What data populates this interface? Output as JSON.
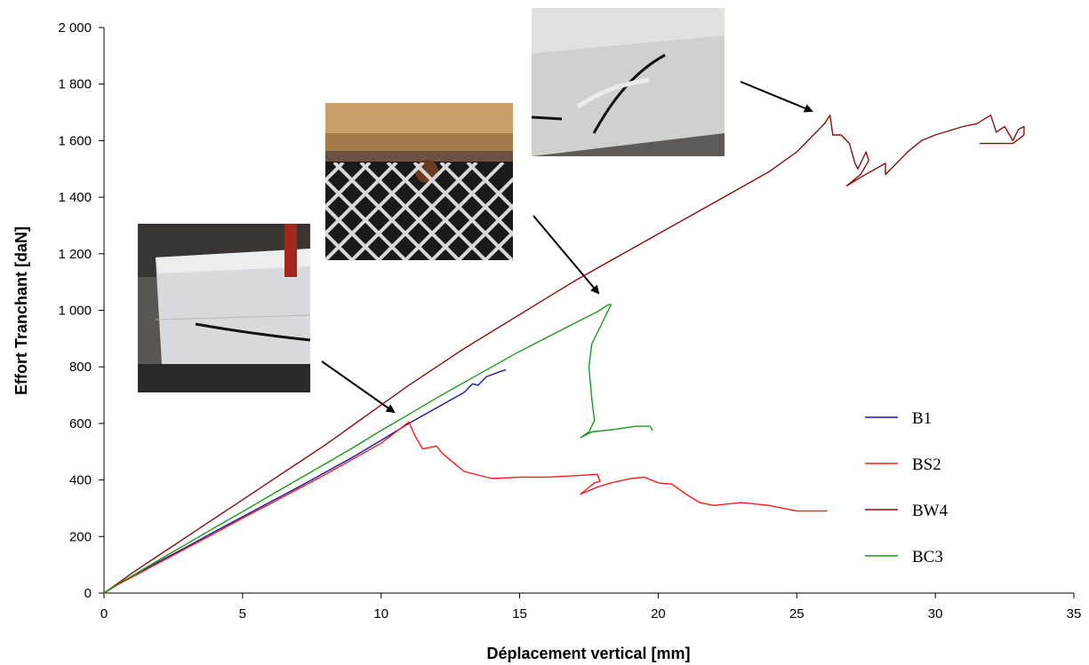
{
  "chart_data": {
    "type": "line",
    "title": "",
    "xlabel": "Déplacement vertical [mm]",
    "ylabel": "Effort Tranchant [daN]",
    "xlim": [
      0,
      35
    ],
    "ylim": [
      0,
      2000
    ],
    "xticks": [
      0,
      5,
      10,
      15,
      20,
      25,
      30,
      35
    ],
    "yticks": [
      0,
      200,
      400,
      600,
      800,
      1000,
      1200,
      1400,
      1600,
      1800,
      2000
    ],
    "xtick_labels": [
      "0",
      "5",
      "10",
      "15",
      "20",
      "25",
      "30",
      "35"
    ],
    "ytick_labels": [
      "0",
      "200",
      "400",
      "600",
      "800",
      "1 000",
      "1 200",
      "1 400",
      "1 600",
      "1 800",
      "2 000"
    ],
    "grid": false,
    "legend_position": "right",
    "series": [
      {
        "name": "B1",
        "color": "#1a1aa6",
        "points": [
          [
            0,
            0
          ],
          [
            0.5,
            30
          ],
          [
            1,
            58
          ],
          [
            2,
            112
          ],
          [
            3,
            164
          ],
          [
            4,
            218
          ],
          [
            5,
            270
          ],
          [
            6,
            322
          ],
          [
            7,
            374
          ],
          [
            8,
            428
          ],
          [
            9,
            482
          ],
          [
            10,
            540
          ],
          [
            11,
            600
          ],
          [
            12,
            655
          ],
          [
            13,
            710
          ],
          [
            13.3,
            740
          ],
          [
            13.5,
            735
          ],
          [
            13.8,
            765
          ],
          [
            14.2,
            780
          ],
          [
            14.5,
            790
          ]
        ]
      },
      {
        "name": "BS2",
        "color": "#ff1a1a",
        "points": [
          [
            0,
            0
          ],
          [
            0.5,
            30
          ],
          [
            1,
            56
          ],
          [
            2,
            108
          ],
          [
            3,
            160
          ],
          [
            4,
            212
          ],
          [
            5,
            265
          ],
          [
            6,
            316
          ],
          [
            7,
            368
          ],
          [
            8,
            420
          ],
          [
            9,
            475
          ],
          [
            10,
            530
          ],
          [
            10.6,
            575
          ],
          [
            11,
            605
          ],
          [
            11.2,
            560
          ],
          [
            11.5,
            510
          ],
          [
            12,
            520
          ],
          [
            12.2,
            495
          ],
          [
            12.5,
            470
          ],
          [
            13,
            430
          ],
          [
            14,
            405
          ],
          [
            15,
            410
          ],
          [
            16,
            410
          ],
          [
            17,
            415
          ],
          [
            17.8,
            420
          ],
          [
            17.9,
            395
          ],
          [
            17.7,
            390
          ],
          [
            17.2,
            350
          ],
          [
            17.8,
            375
          ],
          [
            18.3,
            390
          ],
          [
            19,
            405
          ],
          [
            19.5,
            410
          ],
          [
            20,
            390
          ],
          [
            20.5,
            385
          ],
          [
            21,
            350
          ],
          [
            21.5,
            320
          ],
          [
            22,
            310
          ],
          [
            23,
            320
          ],
          [
            24,
            310
          ],
          [
            24.5,
            300
          ],
          [
            25,
            290
          ],
          [
            26,
            290
          ],
          [
            26.1,
            290
          ]
        ]
      },
      {
        "name": "BW4",
        "color": "#8b0f0f",
        "points": [
          [
            0,
            0
          ],
          [
            0.5,
            35
          ],
          [
            1,
            70
          ],
          [
            2,
            135
          ],
          [
            3,
            200
          ],
          [
            4,
            265
          ],
          [
            5,
            330
          ],
          [
            6,
            395
          ],
          [
            7,
            460
          ],
          [
            8,
            525
          ],
          [
            9,
            595
          ],
          [
            10,
            665
          ],
          [
            11,
            735
          ],
          [
            12,
            800
          ],
          [
            13,
            865
          ],
          [
            14,
            925
          ],
          [
            15,
            985
          ],
          [
            16,
            1045
          ],
          [
            17,
            1105
          ],
          [
            18,
            1160
          ],
          [
            19,
            1215
          ],
          [
            20,
            1270
          ],
          [
            21,
            1325
          ],
          [
            22,
            1380
          ],
          [
            23,
            1435
          ],
          [
            24,
            1490
          ],
          [
            25,
            1560
          ],
          [
            25.5,
            1610
          ],
          [
            26,
            1660
          ],
          [
            26.2,
            1690
          ],
          [
            26.3,
            1620
          ],
          [
            26.6,
            1620
          ],
          [
            26.9,
            1590
          ],
          [
            27.1,
            1520
          ],
          [
            27.2,
            1500
          ],
          [
            27.5,
            1560
          ],
          [
            27.6,
            1530
          ],
          [
            27.3,
            1480
          ],
          [
            26.8,
            1440
          ],
          [
            27.3,
            1470
          ],
          [
            28.2,
            1520
          ],
          [
            28.2,
            1480
          ],
          [
            28.6,
            1520
          ],
          [
            29,
            1560
          ],
          [
            29.5,
            1600
          ],
          [
            30,
            1620
          ],
          [
            31,
            1650
          ],
          [
            31.5,
            1660
          ],
          [
            32,
            1690
          ],
          [
            32.2,
            1630
          ],
          [
            32.5,
            1650
          ],
          [
            32.8,
            1600
          ],
          [
            33,
            1640
          ],
          [
            33.2,
            1650
          ],
          [
            33.2,
            1620
          ],
          [
            32.8,
            1590
          ],
          [
            32,
            1590
          ],
          [
            31.6,
            1590
          ]
        ]
      },
      {
        "name": "BC3",
        "color": "#1a9a1a",
        "points": [
          [
            0,
            0
          ],
          [
            0.5,
            32
          ],
          [
            1,
            60
          ],
          [
            2,
            118
          ],
          [
            3,
            175
          ],
          [
            4,
            232
          ],
          [
            5,
            288
          ],
          [
            6,
            345
          ],
          [
            7,
            402
          ],
          [
            8,
            458
          ],
          [
            9,
            515
          ],
          [
            10,
            575
          ],
          [
            11,
            632
          ],
          [
            12,
            690
          ],
          [
            13,
            745
          ],
          [
            14,
            800
          ],
          [
            15,
            855
          ],
          [
            16,
            905
          ],
          [
            17,
            955
          ],
          [
            17.8,
            995
          ],
          [
            18.2,
            1020
          ],
          [
            18.3,
            1020
          ],
          [
            17.9,
            940
          ],
          [
            17.6,
            880
          ],
          [
            17.5,
            800
          ],
          [
            17.6,
            690
          ],
          [
            17.7,
            610
          ],
          [
            17.5,
            570
          ],
          [
            17.2,
            550
          ],
          [
            17.6,
            570
          ],
          [
            18.5,
            580
          ],
          [
            19.2,
            590
          ],
          [
            19.7,
            590
          ],
          [
            19.8,
            575
          ]
        ]
      }
    ],
    "legend": [
      {
        "name": "B1",
        "color": "#1a1aa6"
      },
      {
        "name": "BS2",
        "color": "#ff1a1a"
      },
      {
        "name": "BW4",
        "color": "#8b0f0f"
      },
      {
        "name": "BC3",
        "color": "#1a9a1a"
      }
    ]
  }
}
